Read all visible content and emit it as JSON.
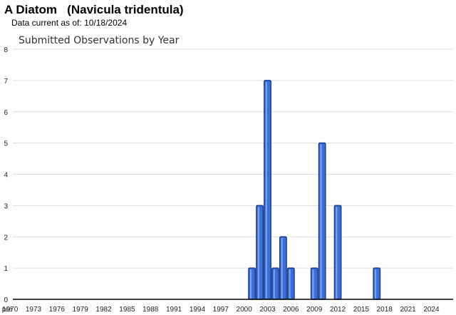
{
  "header": {
    "species_common": "A Diatom",
    "species_scientific": "(Navicula tridentula)",
    "data_current_label": "Data current as of:",
    "data_current_date": "10/18/2024"
  },
  "chart_data": {
    "type": "bar",
    "title": "Submitted Observations by Year",
    "xlabel": "",
    "ylabel": "",
    "ylim": [
      0,
      8
    ],
    "yticks": [
      0,
      1,
      2,
      3,
      4,
      5,
      6,
      7,
      8
    ],
    "grid": true,
    "bar_color": "#3a6fd8",
    "bar_stroke": "#1a3c8a",
    "categories": [
      "pre",
      "1970",
      "1971",
      "1972",
      "1973",
      "1974",
      "1975",
      "1976",
      "1977",
      "1978",
      "1979",
      "1980",
      "1981",
      "1982",
      "1983",
      "1984",
      "1985",
      "1986",
      "1987",
      "1988",
      "1989",
      "1990",
      "1991",
      "1992",
      "1993",
      "1994",
      "1995",
      "1996",
      "1997",
      "1998",
      "1999",
      "2000",
      "2001",
      "2002",
      "2003",
      "2004",
      "2005",
      "2006",
      "2007",
      "2008",
      "2009",
      "2010",
      "2011",
      "2012",
      "2013",
      "2014",
      "2015",
      "2016",
      "2017",
      "2018",
      "2019",
      "2020",
      "2021",
      "2022",
      "2023",
      "2024"
    ],
    "values": [
      0,
      0,
      0,
      0,
      0,
      0,
      0,
      0,
      0,
      0,
      0,
      0,
      0,
      0,
      0,
      0,
      0,
      0,
      0,
      0,
      0,
      0,
      0,
      0,
      0,
      0,
      0,
      0,
      0,
      0,
      0,
      0,
      1,
      3,
      7,
      1,
      2,
      1,
      0,
      0,
      1,
      5,
      0,
      3,
      0,
      0,
      0,
      0,
      1,
      0,
      0,
      0,
      0,
      0,
      0,
      0
    ],
    "tick_labels": [
      "pre",
      "1970",
      "1973",
      "1976",
      "1979",
      "1982",
      "1985",
      "1988",
      "1991",
      "1994",
      "1997",
      "2000",
      "2003",
      "2006",
      "2009",
      "2012",
      "2015",
      "2018",
      "2021",
      "2024"
    ]
  }
}
